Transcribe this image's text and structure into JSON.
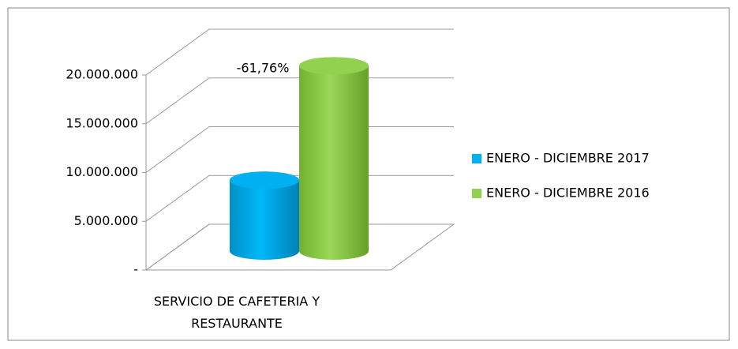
{
  "chart_data": {
    "type": "bar3d",
    "categories": [
      "SERVICIO DE CAFETERIA Y RESTAURANTE"
    ],
    "series": [
      {
        "name": "ENERO - DICIEMBRE 2017",
        "color": "#00b0f0",
        "values": [
          7266000
        ]
      },
      {
        "name": "ENERO - DICIEMBRE 2016",
        "color": "#92d050",
        "values": [
          19000000
        ]
      }
    ],
    "annotations": [
      "-61,76%"
    ],
    "ylim": [
      0,
      20000000
    ],
    "yticks": [
      {
        "value": 0,
        "label": "-"
      },
      {
        "value": 5000000,
        "label": "5.000.000"
      },
      {
        "value": 10000000,
        "label": "10.000.000"
      },
      {
        "value": 15000000,
        "label": "15.000.000"
      },
      {
        "value": 20000000,
        "label": "20.000.000"
      }
    ],
    "grid": true,
    "legend": "right"
  }
}
